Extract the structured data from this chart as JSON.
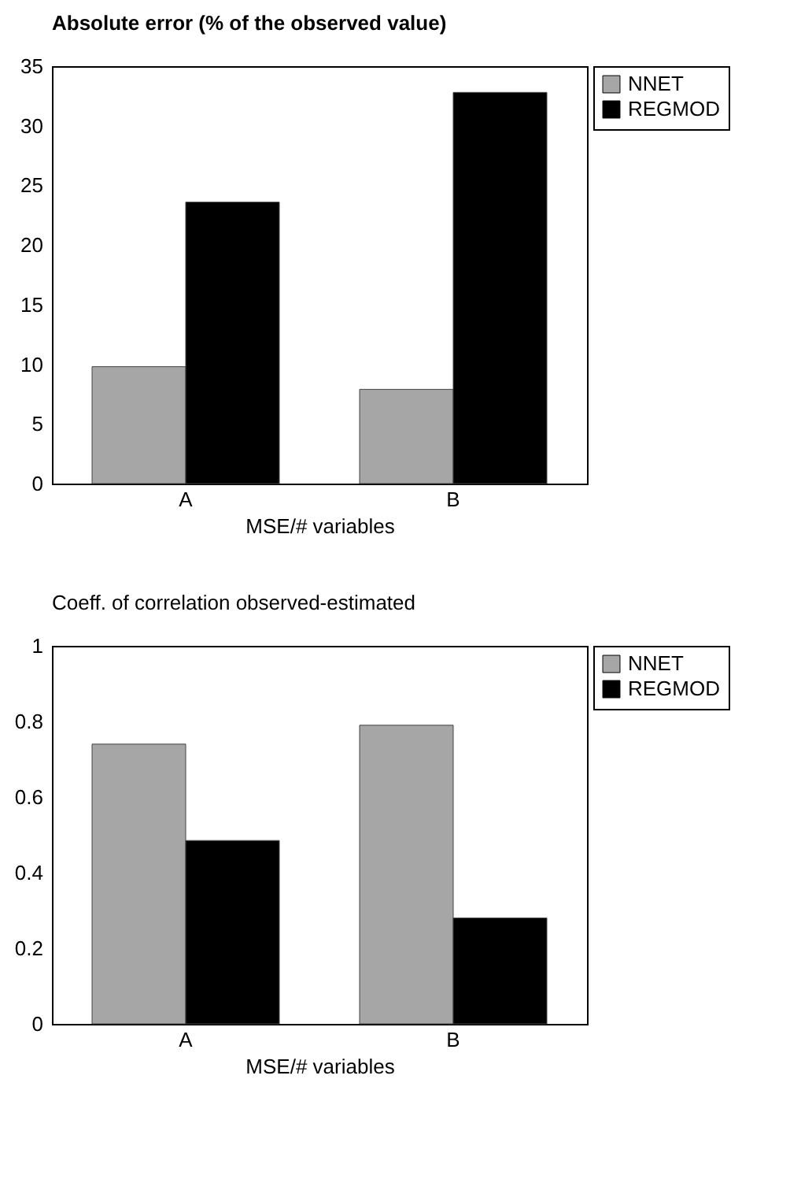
{
  "chart_data": [
    {
      "type": "bar",
      "title": "Absolute error (% of the observed value)",
      "xlabel": "MSE/# variables",
      "categories": [
        "A",
        "B"
      ],
      "series": [
        {
          "name": "NNET",
          "color": "#a6a6a6",
          "values": [
            9.8,
            7.9
          ]
        },
        {
          "name": "REGMOD",
          "color": "#000000",
          "values": [
            23.6,
            32.8
          ]
        }
      ],
      "ylim": [
        0,
        35
      ],
      "yticks": [
        0,
        5,
        10,
        15,
        20,
        25,
        30,
        35
      ],
      "grid": false,
      "legend": "top right"
    },
    {
      "type": "bar",
      "title": "Coeff. of correlation observed-estimated",
      "xlabel": "MSE/# variables",
      "categories": [
        "A",
        "B"
      ],
      "series": [
        {
          "name": "NNET",
          "color": "#a6a6a6",
          "values": [
            0.74,
            0.79
          ]
        },
        {
          "name": "REGMOD",
          "color": "#000000",
          "values": [
            0.485,
            0.28
          ]
        }
      ],
      "ylim": [
        0,
        1
      ],
      "yticks": [
        0,
        0.2,
        0.4,
        0.6,
        0.8,
        1
      ],
      "grid": false,
      "legend": "top right"
    }
  ]
}
